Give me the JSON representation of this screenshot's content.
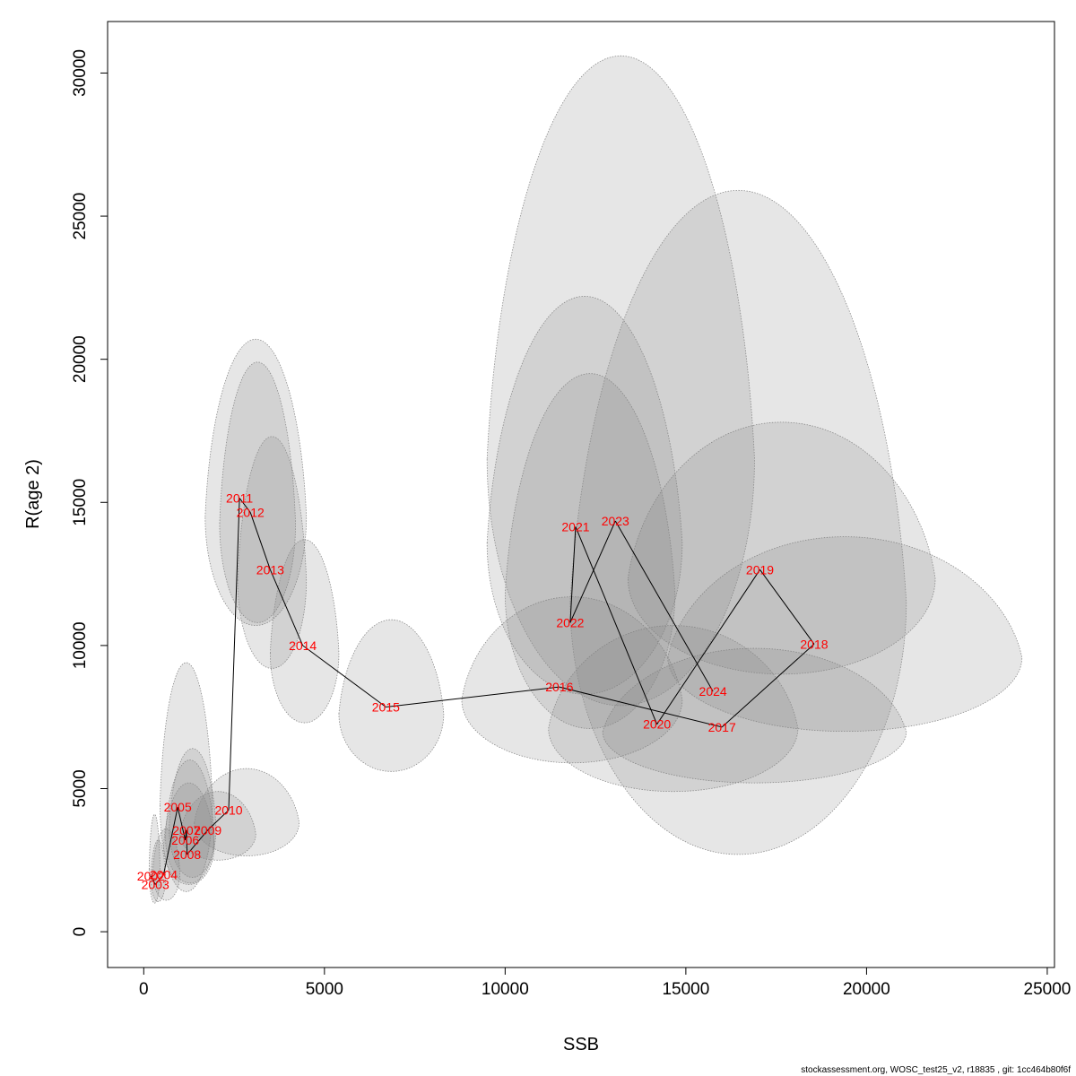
{
  "chart_data": {
    "type": "scatter",
    "xlabel": "SSB",
    "ylabel": "R(age 2)",
    "xlim": [
      -1000,
      25200
    ],
    "ylim": [
      -1250,
      31800
    ],
    "x_ticks": [
      0,
      5000,
      10000,
      15000,
      20000,
      25000
    ],
    "y_ticks": [
      0,
      5000,
      10000,
      15000,
      20000,
      25000,
      30000
    ],
    "colors": {
      "ellipse_fill": "#808080",
      "ellipse_opacity": 0.2,
      "ellipse_border": "#8c8c8c",
      "label": "#ff0000",
      "path": "#000000"
    },
    "points": [
      {
        "year": "2002",
        "ssb": 200,
        "r": 1950,
        "x_range": [
          150,
          450
        ],
        "y_range": [
          1000,
          4100
        ]
      },
      {
        "year": "2003",
        "ssb": 320,
        "r": 1650,
        "x_range": [
          200,
          600
        ],
        "y_range": [
          1050,
          3200
        ]
      },
      {
        "year": "2004",
        "ssb": 550,
        "r": 2000,
        "x_range": [
          250,
          1000
        ],
        "y_range": [
          1100,
          3600
        ]
      },
      {
        "year": "2005",
        "ssb": 940,
        "r": 4350,
        "x_range": [
          450,
          1900
        ],
        "y_range": [
          1400,
          9400
        ]
      },
      {
        "year": "2006",
        "ssb": 1150,
        "r": 3200,
        "x_range": [
          600,
          1950
        ],
        "y_range": [
          1700,
          6000
        ]
      },
      {
        "year": "2007",
        "ssb": 1180,
        "r": 3550,
        "x_range": [
          700,
          2000
        ],
        "y_range": [
          1900,
          6400
        ]
      },
      {
        "year": "2008",
        "ssb": 1200,
        "r": 2700,
        "x_range": [
          550,
          1950
        ],
        "y_range": [
          1650,
          5200
        ]
      },
      {
        "year": "2009",
        "ssb": 1770,
        "r": 3550,
        "x_range": [
          1000,
          3100
        ],
        "y_range": [
          2500,
          4900
        ]
      },
      {
        "year": "2010",
        "ssb": 2350,
        "r": 4250,
        "x_range": [
          1400,
          4300
        ],
        "y_range": [
          2650,
          5700
        ]
      },
      {
        "year": "2011",
        "ssb": 2650,
        "r": 15150,
        "x_range": [
          1700,
          4500
        ],
        "y_range": [
          10700,
          20700
        ]
      },
      {
        "year": "2012",
        "ssb": 2950,
        "r": 14650,
        "x_range": [
          2100,
          4200
        ],
        "y_range": [
          10800,
          19900
        ]
      },
      {
        "year": "2013",
        "ssb": 3500,
        "r": 12650,
        "x_range": [
          2600,
          4500
        ],
        "y_range": [
          9200,
          17300
        ]
      },
      {
        "year": "2014",
        "ssb": 4400,
        "r": 10000,
        "x_range": [
          3500,
          5400
        ],
        "y_range": [
          7300,
          13700
        ]
      },
      {
        "year": "2015",
        "ssb": 6700,
        "r": 7850,
        "x_range": [
          5400,
          8300
        ],
        "y_range": [
          5600,
          10900
        ]
      },
      {
        "year": "2016",
        "ssb": 11500,
        "r": 8550,
        "x_range": [
          8800,
          14900
        ],
        "y_range": [
          5900,
          11700
        ]
      },
      {
        "year": "2017",
        "ssb": 16000,
        "r": 7150,
        "x_range": [
          12700,
          21100
        ],
        "y_range": [
          5200,
          9900
        ]
      },
      {
        "year": "2018",
        "ssb": 18550,
        "r": 10050,
        "x_range": [
          14500,
          24300
        ],
        "y_range": [
          7000,
          13800
        ]
      },
      {
        "year": "2019",
        "ssb": 17050,
        "r": 12650,
        "x_range": [
          13400,
          21900
        ],
        "y_range": [
          9000,
          17800
        ]
      },
      {
        "year": "2020",
        "ssb": 14200,
        "r": 7250,
        "x_range": [
          11200,
          18100
        ],
        "y_range": [
          4900,
          10700
        ]
      },
      {
        "year": "2021",
        "ssb": 11950,
        "r": 14150,
        "x_range": [
          9500,
          14900
        ],
        "y_range": [
          8300,
          22200
        ]
      },
      {
        "year": "2022",
        "ssb": 11800,
        "r": 10800,
        "x_range": [
          10000,
          14700
        ],
        "y_range": [
          7100,
          19500
        ]
      },
      {
        "year": "2023",
        "ssb": 13050,
        "r": 14350,
        "x_range": [
          9500,
          16900
        ],
        "y_range": [
          7900,
          30600
        ]
      },
      {
        "year": "2024",
        "ssb": 15750,
        "r": 8400,
        "x_range": [
          11800,
          21100
        ],
        "y_range": [
          2700,
          25900
        ]
      }
    ]
  },
  "footer": "stockassessment.org, WOSC_test25_v2, r18835 , git: 1cc464b80f6f"
}
